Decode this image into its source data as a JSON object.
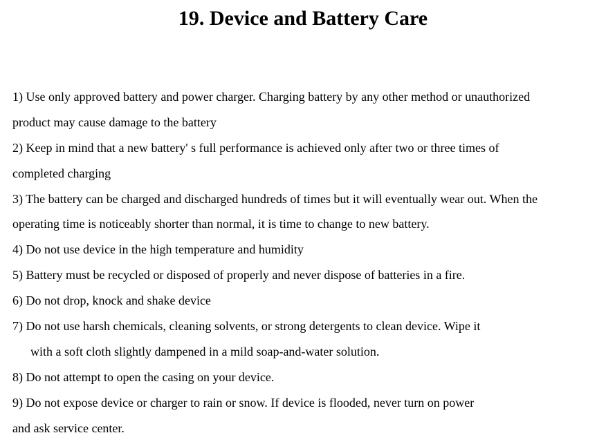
{
  "title": "19. Device and Battery Care",
  "title_fontsize": 30,
  "body_fontsize": 18,
  "text_color": "#000000",
  "background_color": "#ffffff",
  "lines": [
    {
      "text": "1) Use only approved battery and power charger. Charging battery by any other method or unauthorized",
      "indented": false
    },
    {
      "text": "product may cause damage to the battery",
      "indented": false
    },
    {
      "text": "2) Keep in mind that a new battery' s full performance is achieved only after two or three times of",
      "indented": false
    },
    {
      "text": "completed charging",
      "indented": false
    },
    {
      "text": "3) The battery can be charged and discharged hundreds of times but it will eventually wear out. When the",
      "indented": false
    },
    {
      "text": "operating time is noticeably shorter than normal, it is time to change to new battery.",
      "indented": false
    },
    {
      "text": "4) Do not use device in the high temperature and humidity",
      "indented": false
    },
    {
      "text": "5) Battery must be recycled or disposed of properly and never dispose of batteries in a fire.",
      "indented": false
    },
    {
      "text": "6) Do not drop, knock and shake device",
      "indented": false
    },
    {
      "text": "7) Do not use harsh chemicals, cleaning solvents, or strong detergents to clean device. Wipe it",
      "indented": false
    },
    {
      "text": "with a soft cloth slightly dampened in a mild soap-and-water solution.",
      "indented": true
    },
    {
      "text": "8) Do not attempt to open the casing on your device.",
      "indented": false
    },
    {
      "text": "9) Do not expose device or charger to rain or snow. If device is flooded, never turn on power",
      "indented": false
    },
    {
      "text": "and ask service center.",
      "indented": false
    }
  ]
}
